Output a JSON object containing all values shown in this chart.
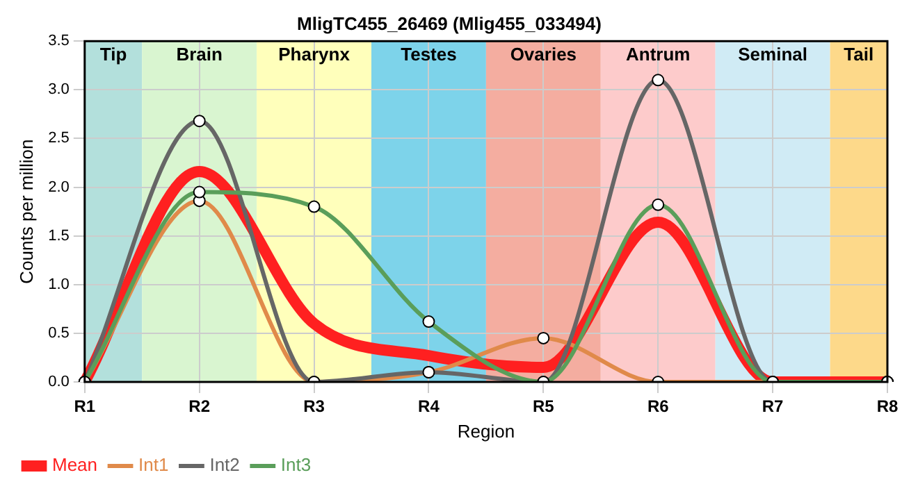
{
  "chart_data": {
    "type": "line",
    "title": "MligTC455_26469 (Mlig455_033494)",
    "xlabel": "Region",
    "ylabel": "Counts per million",
    "categories": [
      "R1",
      "R2",
      "R3",
      "R4",
      "R5",
      "R6",
      "R7",
      "R8"
    ],
    "ylim": [
      0,
      3.5
    ],
    "yticks": [
      {
        "value": 0,
        "label": "0.0"
      },
      {
        "value": 0.5,
        "label": "0.5"
      },
      {
        "value": 1,
        "label": "1.0"
      },
      {
        "value": 1.5,
        "label": "1.5"
      },
      {
        "value": 2,
        "label": "2.0"
      },
      {
        "value": 2.5,
        "label": "2.5"
      },
      {
        "value": 3,
        "label": "3.0"
      },
      {
        "value": 3.5,
        "label": "3.5"
      }
    ],
    "series": [
      {
        "name": "Mean",
        "color": "#ff2020",
        "marker": "none",
        "values": [
          0,
          2.16,
          0.6,
          0.27,
          0.15,
          1.64,
          0,
          0
        ]
      },
      {
        "name": "Int1",
        "color": "#e08a4a",
        "marker": "circle",
        "values": [
          0,
          1.86,
          0,
          0.1,
          0.45,
          0,
          0,
          0
        ]
      },
      {
        "name": "Int2",
        "color": "#666666",
        "marker": "circle",
        "values": [
          0,
          2.68,
          0,
          0.1,
          0,
          3.1,
          0,
          0
        ]
      },
      {
        "name": "Int3",
        "color": "#5a9e5a",
        "marker": "circle",
        "values": [
          0,
          1.95,
          1.8,
          0.62,
          0,
          1.82,
          0,
          0
        ]
      }
    ],
    "bands": [
      {
        "axis": "x",
        "from": "R1",
        "to": "R1",
        "label": "Tip",
        "color": "#b3e0dc"
      },
      {
        "axis": "x",
        "from": "R2",
        "to": "R2",
        "label": "Brain",
        "color": "#d9f5d0"
      },
      {
        "axis": "x",
        "from": "R3",
        "to": "R3",
        "label": "Pharynx",
        "color": "#ffffbb"
      },
      {
        "axis": "x",
        "from": "R4",
        "to": "R4",
        "label": "Testes",
        "color": "#7dd3ea"
      },
      {
        "axis": "x",
        "from": "R5",
        "to": "R5",
        "label": "Ovaries",
        "color": "#f4ada0"
      },
      {
        "axis": "x",
        "from": "R6",
        "to": "R6",
        "label": "Antrum",
        "color": "#fdcbcb"
      },
      {
        "axis": "x",
        "from": "R7",
        "to": "R7",
        "label": "Seminal",
        "color": "#d0ebf5"
      },
      {
        "axis": "x",
        "from": "R8",
        "to": "R8",
        "label": "Tail",
        "color": "#fdd98a"
      }
    ],
    "grid": true,
    "legend": "bottom left"
  }
}
